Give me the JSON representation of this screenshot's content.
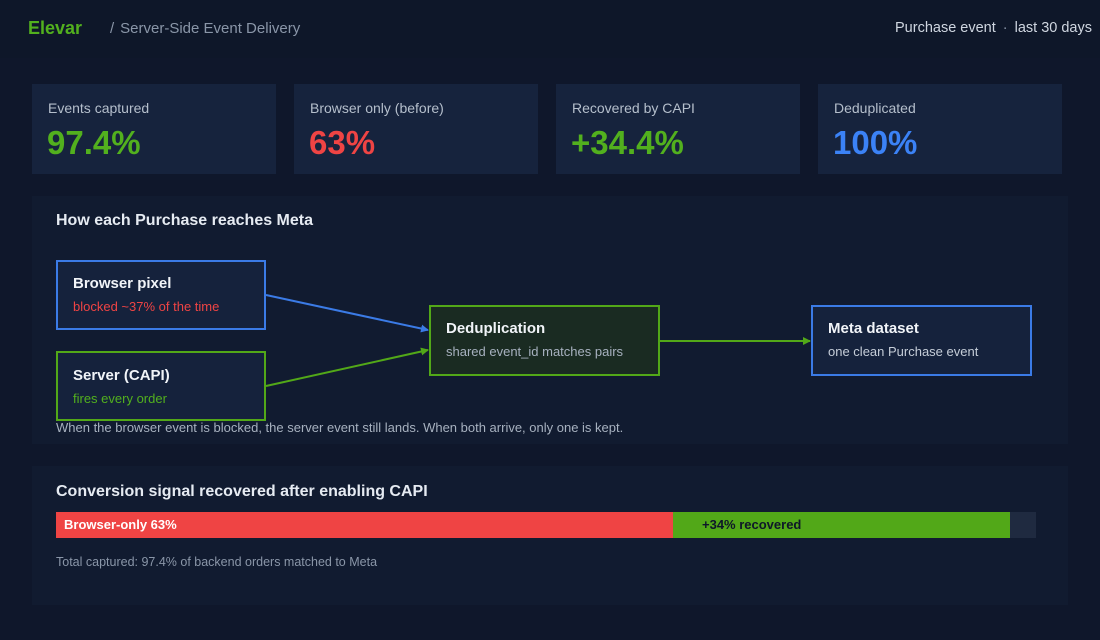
{
  "header": {
    "brand": "Elevar",
    "separator": "/",
    "breadcrumb": "Server-Side Event Delivery",
    "event": "Purchase event",
    "dot": "·",
    "range": "last 30 days"
  },
  "stats": [
    {
      "label": "Events captured",
      "value": "97.4%",
      "color": "#52b01e"
    },
    {
      "label": "Browser only (before)",
      "value": "63%",
      "color": "#ef4444"
    },
    {
      "label": "Recovered by CAPI",
      "value": "+34.4%",
      "color": "#52b01e"
    },
    {
      "label": "Deduplicated",
      "value": "100%",
      "color": "#3b82f6"
    }
  ],
  "flow": {
    "title": "How each Purchase reaches Meta",
    "nodes": {
      "browser": {
        "title": "Browser pixel",
        "sub": "blocked ~37% of the time"
      },
      "server": {
        "title": "Server (CAPI)",
        "sub": "fires every order"
      },
      "dedup": {
        "title": "Deduplication",
        "sub": "shared event_id matches pairs"
      },
      "meta": {
        "title": "Meta dataset",
        "sub": "one clean Purchase event"
      }
    },
    "caption": "When the browser event is blocked, the server event still lands. When both arrive, only one is kept."
  },
  "signal": {
    "title": "Conversion signal recovered after enabling CAPI",
    "segments": [
      {
        "label": "Browser-only 63%",
        "percent": 63,
        "color": "#ef4444"
      },
      {
        "label": "+34% recovered",
        "percent": 34.4,
        "color": "#52a818"
      }
    ],
    "footnote": "Total captured: 97.4% of backend orders matched to Meta"
  },
  "colors": {
    "blue": "#3b7be6",
    "green": "#52a818",
    "red": "#ef4444"
  }
}
